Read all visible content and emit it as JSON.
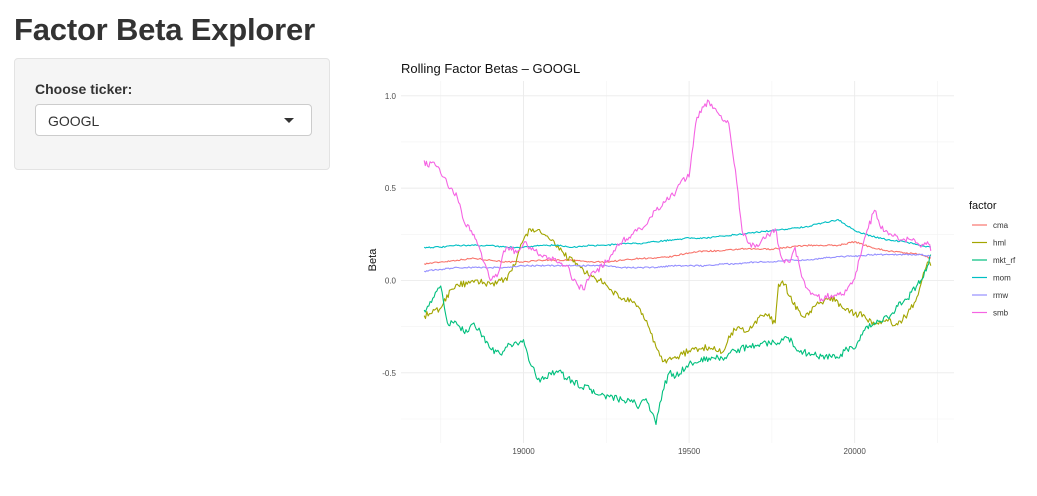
{
  "app": {
    "title": "Factor Beta Explorer"
  },
  "sidebar": {
    "ticker_label": "Choose ticker:",
    "ticker_value": "GOOGL"
  },
  "chart_data": {
    "type": "line",
    "title": "Rolling Factor Betas – GOOGL",
    "xlabel": "",
    "ylabel": "Beta",
    "xlim": [
      18630,
      20300
    ],
    "ylim": [
      -0.88,
      1.08
    ],
    "x_ticks": [
      19000,
      19500,
      20000
    ],
    "x_tick_labels": [
      "19000",
      "19500",
      "20000"
    ],
    "y_ticks": [
      1.0,
      0.5,
      0.0,
      -0.5
    ],
    "y_tick_labels": [
      "1.0",
      "0.5",
      "0.0",
      "-0.5"
    ],
    "grid": true,
    "legend": {
      "title": "factor",
      "position": "right"
    },
    "series": [
      {
        "name": "cma",
        "color": "#F8766D",
        "x": [
          18700,
          18750,
          18800,
          18850,
          18900,
          18950,
          19000,
          19050,
          19100,
          19150,
          19200,
          19250,
          19300,
          19350,
          19400,
          19450,
          19500,
          19550,
          19600,
          19650,
          19700,
          19750,
          19800,
          19850,
          19900,
          19950,
          20000,
          20050,
          20100,
          20150,
          20200,
          20230
        ],
        "y": [
          0.09,
          0.1,
          0.11,
          0.12,
          0.11,
          0.1,
          0.1,
          0.11,
          0.11,
          0.11,
          0.1,
          0.1,
          0.11,
          0.12,
          0.12,
          0.13,
          0.15,
          0.16,
          0.16,
          0.17,
          0.17,
          0.17,
          0.18,
          0.19,
          0.19,
          0.19,
          0.21,
          0.18,
          0.16,
          0.15,
          0.14,
          0.12
        ]
      },
      {
        "name": "hml",
        "color": "#A3A500",
        "x": [
          18700,
          18720,
          18750,
          18780,
          18800,
          18830,
          18850,
          18880,
          18900,
          18930,
          18950,
          18980,
          19000,
          19020,
          19040,
          19060,
          19080,
          19100,
          19120,
          19150,
          19180,
          19200,
          19230,
          19260,
          19300,
          19330,
          19360,
          19380,
          19400,
          19420,
          19450,
          19480,
          19500,
          19530,
          19560,
          19600,
          19620,
          19650,
          19670,
          19700,
          19730,
          19760,
          19770,
          19790,
          19800,
          19830,
          19850,
          19880,
          19900,
          19930,
          19960,
          20000,
          20030,
          20060,
          20100,
          20130,
          20160,
          20180,
          20200,
          20220,
          20230
        ],
        "y": [
          -0.19,
          -0.18,
          -0.15,
          -0.05,
          -0.02,
          -0.02,
          -0.01,
          -0.01,
          -0.02,
          0.0,
          0.0,
          0.12,
          0.22,
          0.28,
          0.27,
          0.25,
          0.22,
          0.18,
          0.15,
          0.1,
          0.06,
          0.02,
          0.0,
          -0.05,
          -0.1,
          -0.12,
          -0.18,
          -0.26,
          -0.36,
          -0.44,
          -0.42,
          -0.4,
          -0.38,
          -0.37,
          -0.36,
          -0.39,
          -0.3,
          -0.25,
          -0.28,
          -0.22,
          -0.18,
          -0.23,
          -0.02,
          -0.02,
          -0.08,
          -0.16,
          -0.2,
          -0.14,
          -0.12,
          -0.09,
          -0.14,
          -0.18,
          -0.19,
          -0.24,
          -0.22,
          -0.24,
          -0.18,
          -0.12,
          -0.02,
          0.1,
          0.08
        ]
      },
      {
        "name": "mkt_rf",
        "color": "#00BF7D",
        "x": [
          18700,
          18710,
          18730,
          18750,
          18770,
          18800,
          18830,
          18850,
          18870,
          18900,
          18930,
          18950,
          18980,
          19000,
          19020,
          19050,
          19080,
          19100,
          19150,
          19200,
          19230,
          19260,
          19300,
          19330,
          19350,
          19370,
          19390,
          19400,
          19420,
          19440,
          19460,
          19500,
          19530,
          19560,
          19600,
          19640,
          19680,
          19720,
          19760,
          19800,
          19830,
          19870,
          19900,
          19950,
          19970,
          20000,
          20030,
          20060,
          20100,
          20130,
          20160,
          20190,
          20200,
          20220,
          20230
        ],
        "y": [
          -0.16,
          -0.14,
          -0.09,
          -0.03,
          -0.23,
          -0.24,
          -0.28,
          -0.23,
          -0.28,
          -0.37,
          -0.4,
          -0.36,
          -0.34,
          -0.32,
          -0.45,
          -0.55,
          -0.5,
          -0.49,
          -0.55,
          -0.59,
          -0.62,
          -0.63,
          -0.65,
          -0.66,
          -0.68,
          -0.64,
          -0.72,
          -0.78,
          -0.6,
          -0.5,
          -0.52,
          -0.45,
          -0.44,
          -0.42,
          -0.42,
          -0.38,
          -0.36,
          -0.34,
          -0.34,
          -0.31,
          -0.38,
          -0.4,
          -0.41,
          -0.42,
          -0.38,
          -0.37,
          -0.27,
          -0.23,
          -0.2,
          -0.14,
          -0.1,
          -0.02,
          0.0,
          0.08,
          0.14
        ]
      },
      {
        "name": "mom",
        "color": "#00BFC4",
        "x": [
          18700,
          18750,
          18800,
          18850,
          18900,
          18950,
          19000,
          19050,
          19100,
          19150,
          19200,
          19250,
          19300,
          19350,
          19400,
          19450,
          19500,
          19550,
          19600,
          19650,
          19700,
          19750,
          19800,
          19850,
          19900,
          19950,
          20000,
          20050,
          20100,
          20150,
          20200,
          20230
        ],
        "y": [
          0.18,
          0.18,
          0.19,
          0.19,
          0.19,
          0.18,
          0.18,
          0.19,
          0.19,
          0.18,
          0.19,
          0.19,
          0.2,
          0.2,
          0.21,
          0.22,
          0.23,
          0.23,
          0.24,
          0.25,
          0.26,
          0.27,
          0.28,
          0.29,
          0.31,
          0.33,
          0.27,
          0.24,
          0.22,
          0.21,
          0.19,
          0.18
        ]
      },
      {
        "name": "rmw",
        "color": "#9590FF",
        "x": [
          18700,
          18750,
          18800,
          18850,
          18900,
          18950,
          19000,
          19050,
          19100,
          19150,
          19200,
          19250,
          19300,
          19350,
          19400,
          19450,
          19500,
          19550,
          19600,
          19650,
          19700,
          19750,
          19800,
          19850,
          19900,
          19950,
          20000,
          20050,
          20100,
          20150,
          20200,
          20230
        ],
        "y": [
          0.05,
          0.06,
          0.07,
          0.07,
          0.07,
          0.07,
          0.08,
          0.08,
          0.08,
          0.08,
          0.08,
          0.08,
          0.07,
          0.07,
          0.07,
          0.08,
          0.08,
          0.08,
          0.09,
          0.09,
          0.1,
          0.1,
          0.11,
          0.11,
          0.12,
          0.13,
          0.13,
          0.14,
          0.14,
          0.14,
          0.14,
          0.13
        ]
      },
      {
        "name": "smb",
        "color": "#F564E3",
        "x": [
          18700,
          18710,
          18730,
          18750,
          18770,
          18800,
          18820,
          18850,
          18880,
          18900,
          18920,
          18940,
          18960,
          18980,
          19000,
          19020,
          19050,
          19080,
          19100,
          19130,
          19150,
          19180,
          19200,
          19220,
          19250,
          19280,
          19300,
          19330,
          19370,
          19400,
          19430,
          19460,
          19480,
          19500,
          19520,
          19540,
          19560,
          19580,
          19600,
          19620,
          19640,
          19660,
          19680,
          19700,
          19720,
          19760,
          19780,
          19800,
          19820,
          19840,
          19860,
          19880,
          19900,
          19930,
          19960,
          20000,
          20030,
          20060,
          20080,
          20110,
          20140,
          20170,
          20200,
          20220,
          20230
        ],
        "y": [
          0.65,
          0.62,
          0.64,
          0.58,
          0.52,
          0.45,
          0.32,
          0.25,
          0.1,
          0.0,
          0.02,
          0.16,
          0.18,
          0.15,
          0.2,
          0.18,
          0.14,
          0.12,
          0.1,
          0.08,
          0.0,
          -0.05,
          0.02,
          0.05,
          0.1,
          0.18,
          0.22,
          0.25,
          0.3,
          0.38,
          0.43,
          0.48,
          0.55,
          0.56,
          0.85,
          0.94,
          0.97,
          0.93,
          0.87,
          0.85,
          0.6,
          0.27,
          0.2,
          0.18,
          0.22,
          0.28,
          0.12,
          0.1,
          0.18,
          0.02,
          -0.05,
          -0.08,
          -0.1,
          -0.08,
          -0.08,
          0.01,
          0.23,
          0.38,
          0.28,
          0.25,
          0.22,
          0.22,
          0.18,
          0.21,
          0.16
        ]
      }
    ]
  }
}
